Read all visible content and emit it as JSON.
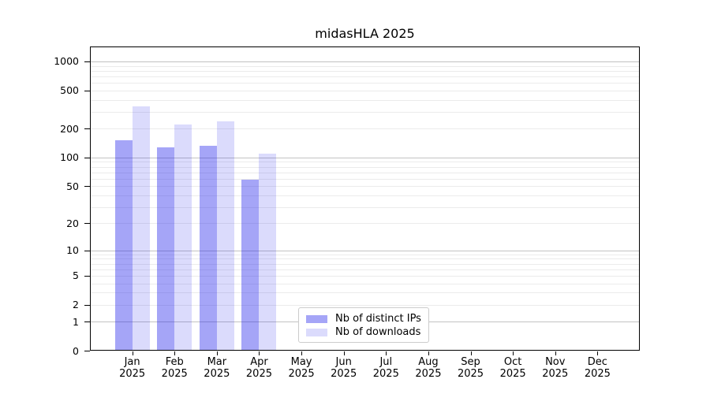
{
  "chart_data": {
    "type": "bar",
    "title": "midasHLA 2025",
    "categories": [
      "Jan",
      "Feb",
      "Mar",
      "Apr",
      "May",
      "Jun",
      "Jul",
      "Aug",
      "Sep",
      "Oct",
      "Nov",
      "Dec"
    ],
    "year": "2025",
    "series": [
      {
        "name": "Nb of distinct IPs",
        "values": [
          150,
          128,
          133,
          58,
          0,
          0,
          0,
          0,
          0,
          0,
          0,
          0
        ],
        "color": "#2828eb",
        "opacity": 0.42
      },
      {
        "name": "Nb of downloads",
        "values": [
          340,
          221,
          238,
          109,
          0,
          0,
          0,
          0,
          0,
          0,
          0,
          0
        ],
        "color": "#2828eb",
        "opacity": 0.17
      }
    ],
    "xlabel": "",
    "ylabel": "",
    "y_scale": "log1p",
    "ylim": [
      0,
      1430
    ],
    "y_ticks": [
      0,
      1,
      2,
      5,
      10,
      20,
      50,
      100,
      200,
      500,
      1000
    ],
    "grid": {
      "major_lines": [
        1,
        10,
        100,
        1000
      ],
      "minor_decades": [
        1,
        10,
        100
      ],
      "minor_multiples": [
        2,
        3,
        4,
        5,
        6,
        7,
        8,
        9
      ],
      "major_color": "#c2c2c2",
      "minor_color": "#ebebeb"
    },
    "legend": {
      "position": "lower-center",
      "entries": [
        "Nb of distinct IPs",
        "Nb of downloads"
      ]
    },
    "axis_color": "#000000",
    "background_color": "#ffffff"
  }
}
